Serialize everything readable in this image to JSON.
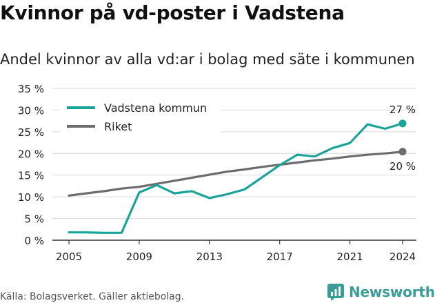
{
  "title": "Kvinnor på vd-poster i Vadstena",
  "subtitle": "Andel kvinnor av alla vd:ar i bolag med säte i kommunen",
  "source": "Källa: Bolagsverket. Gäller aktiebolag.",
  "brand": "Newsworthy",
  "colors": {
    "vadstena": "#1aa399",
    "riket": "#6b6b70",
    "grid": "#d9d9d9",
    "brand": "#3a9e98"
  },
  "chart_data": {
    "type": "line",
    "x": [
      2005,
      2006,
      2007,
      2008,
      2009,
      2010,
      2011,
      2012,
      2013,
      2014,
      2015,
      2016,
      2017,
      2018,
      2019,
      2020,
      2021,
      2022,
      2023,
      2024
    ],
    "x_ticks": [
      2005,
      2009,
      2013,
      2017,
      2021,
      2024
    ],
    "x_tick_labels": [
      "2005",
      "2009",
      "2013",
      "2017",
      "2021",
      "2024"
    ],
    "ylim": [
      0,
      35
    ],
    "y_ticks": [
      0,
      5,
      10,
      15,
      20,
      25,
      30,
      35
    ],
    "y_tick_labels": [
      "0 %",
      "5 %",
      "10 %",
      "15 %",
      "20 %",
      "25 %",
      "30 %",
      "35 %"
    ],
    "grid": true,
    "legend_position": "top-left",
    "series": [
      {
        "name": "Vadstena kommun",
        "values": [
          1.8,
          1.8,
          1.7,
          1.7,
          11.0,
          12.7,
          10.8,
          11.3,
          9.7,
          10.6,
          11.7,
          14.5,
          17.3,
          19.7,
          19.3,
          21.2,
          22.4,
          26.7,
          25.7,
          26.9
        ],
        "end_label": "27 %"
      },
      {
        "name": "Riket",
        "values": [
          10.3,
          10.8,
          11.3,
          11.9,
          12.3,
          13.0,
          13.7,
          14.4,
          15.1,
          15.8,
          16.3,
          16.9,
          17.4,
          17.9,
          18.4,
          18.8,
          19.3,
          19.7,
          20.0,
          20.4
        ],
        "end_label": "20 %"
      }
    ]
  }
}
